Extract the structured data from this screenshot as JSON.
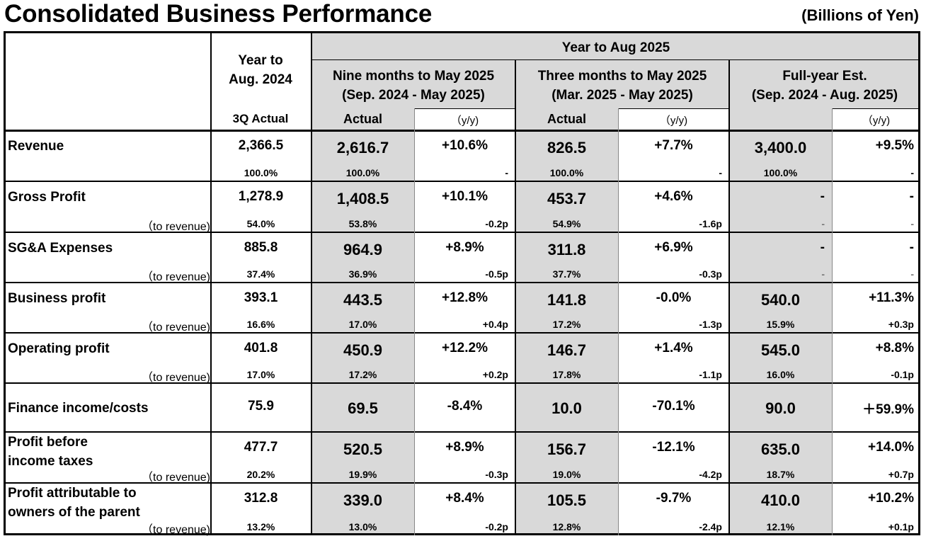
{
  "title": "Consolidated Business Performance",
  "unit": "(Billions of Yen)",
  "header": {
    "prev_year_line1": "Year to",
    "prev_year_line2": "Aug. 2024",
    "prev_year_sub": "3Q Actual",
    "group": "Year to Aug 2025",
    "nine_months_line1": "Nine months to May 2025",
    "nine_months_line2": "(Sep. 2024 - May 2025)",
    "three_months_line1": "Three months to May 2025",
    "three_months_line2": "(Mar. 2025 - May 2025)",
    "full_year_line1": "Full-year Est.",
    "full_year_line2": "(Sep. 2024 - Aug. 2025)",
    "actual": "Actual",
    "yy": "（y/y)"
  },
  "rows": [
    {
      "label": [
        "Revenue"
      ],
      "sub_label": "",
      "prev": "2,366.5",
      "prev_pct": "100.0%",
      "nine": "2,616.7",
      "nine_pct": "100.0%",
      "nine_yy": "+10.6%",
      "nine_yy_sub": "-",
      "three": "826.5",
      "three_pct": "100.0%",
      "three_yy": "+7.7%",
      "three_yy_sub": "-",
      "full": "3,400.0",
      "full_pct": "100.0%",
      "full_yy": "+9.5%",
      "full_yy_sub": "-"
    },
    {
      "label": [
        "Gross Profit"
      ],
      "sub_label": "（to revenue)",
      "prev": "1,278.9",
      "prev_pct": "54.0%",
      "nine": "1,408.5",
      "nine_pct": "53.8%",
      "nine_yy": "+10.1%",
      "nine_yy_sub": "-0.2p",
      "three": "453.7",
      "three_pct": "54.9%",
      "three_yy": "+4.6%",
      "three_yy_sub": "-1.6p",
      "full": "-",
      "full_pct": "-",
      "full_yy": "-",
      "full_yy_sub": "-"
    },
    {
      "label": [
        "SG&A Expenses"
      ],
      "sub_label": "（to revenue)",
      "prev": "885.8",
      "prev_pct": "37.4%",
      "nine": "964.9",
      "nine_pct": "36.9%",
      "nine_yy": "+8.9%",
      "nine_yy_sub": "-0.5p",
      "three": "311.8",
      "three_pct": "37.7%",
      "three_yy": "+6.9%",
      "three_yy_sub": "-0.3p",
      "full": "-",
      "full_pct": "-",
      "full_yy": "-",
      "full_yy_sub": "-"
    },
    {
      "label": [
        "Business profit"
      ],
      "sub_label": "（to revenue)",
      "prev": "393.1",
      "prev_pct": "16.6%",
      "nine": "443.5",
      "nine_pct": "17.0%",
      "nine_yy": "+12.8%",
      "nine_yy_sub": "+0.4p",
      "three": "141.8",
      "three_pct": "17.2%",
      "three_yy": "-0.0%",
      "three_yy_sub": "-1.3p",
      "full": "540.0",
      "full_pct": "15.9%",
      "full_yy": "+11.3%",
      "full_yy_sub": "+0.3p"
    },
    {
      "label": [
        "Operating profit"
      ],
      "sub_label": "（to revenue)",
      "prev": "401.8",
      "prev_pct": "17.0%",
      "nine": "450.9",
      "nine_pct": "17.2%",
      "nine_yy": "+12.2%",
      "nine_yy_sub": "+0.2p",
      "three": "146.7",
      "three_pct": "17.8%",
      "three_yy": "+1.4%",
      "three_yy_sub": "-1.1p",
      "full": "545.0",
      "full_pct": "16.0%",
      "full_yy": "+8.8%",
      "full_yy_sub": "-0.1p"
    },
    {
      "label": [
        "Finance income/costs"
      ],
      "sub_label": "",
      "prev": "75.9",
      "prev_pct": "",
      "nine": "69.5",
      "nine_pct": "",
      "nine_yy": "-8.4%",
      "nine_yy_sub": "",
      "three": "10.0",
      "three_pct": "",
      "three_yy": "-70.1%",
      "three_yy_sub": "",
      "full": "90.0",
      "full_pct": "",
      "full_yy": "＋59.9%",
      "full_yy_sub": ""
    },
    {
      "label": [
        "Profit before",
        "income taxes"
      ],
      "sub_label": "（to revenue)",
      "prev": "477.7",
      "prev_pct": "20.2%",
      "nine": "520.5",
      "nine_pct": "19.9%",
      "nine_yy": "+8.9%",
      "nine_yy_sub": "-0.3p",
      "three": "156.7",
      "three_pct": "19.0%",
      "three_yy": "-12.1%",
      "three_yy_sub": "-4.2p",
      "full": "635.0",
      "full_pct": "18.7%",
      "full_yy": "+14.0%",
      "full_yy_sub": "+0.7p"
    },
    {
      "label": [
        "Profit attributable to",
        "owners of the parent"
      ],
      "sub_label": "（to revenue)",
      "prev": "312.8",
      "prev_pct": "13.2%",
      "nine": "339.0",
      "nine_pct": "13.0%",
      "nine_yy": "+8.4%",
      "nine_yy_sub": "-0.2p",
      "three": "105.5",
      "three_pct": "12.8%",
      "three_yy": "-9.7%",
      "three_yy_sub": "-2.4p",
      "full": "410.0",
      "full_pct": "12.1%",
      "full_yy": "+10.2%",
      "full_yy_sub": "+0.1p"
    }
  ]
}
